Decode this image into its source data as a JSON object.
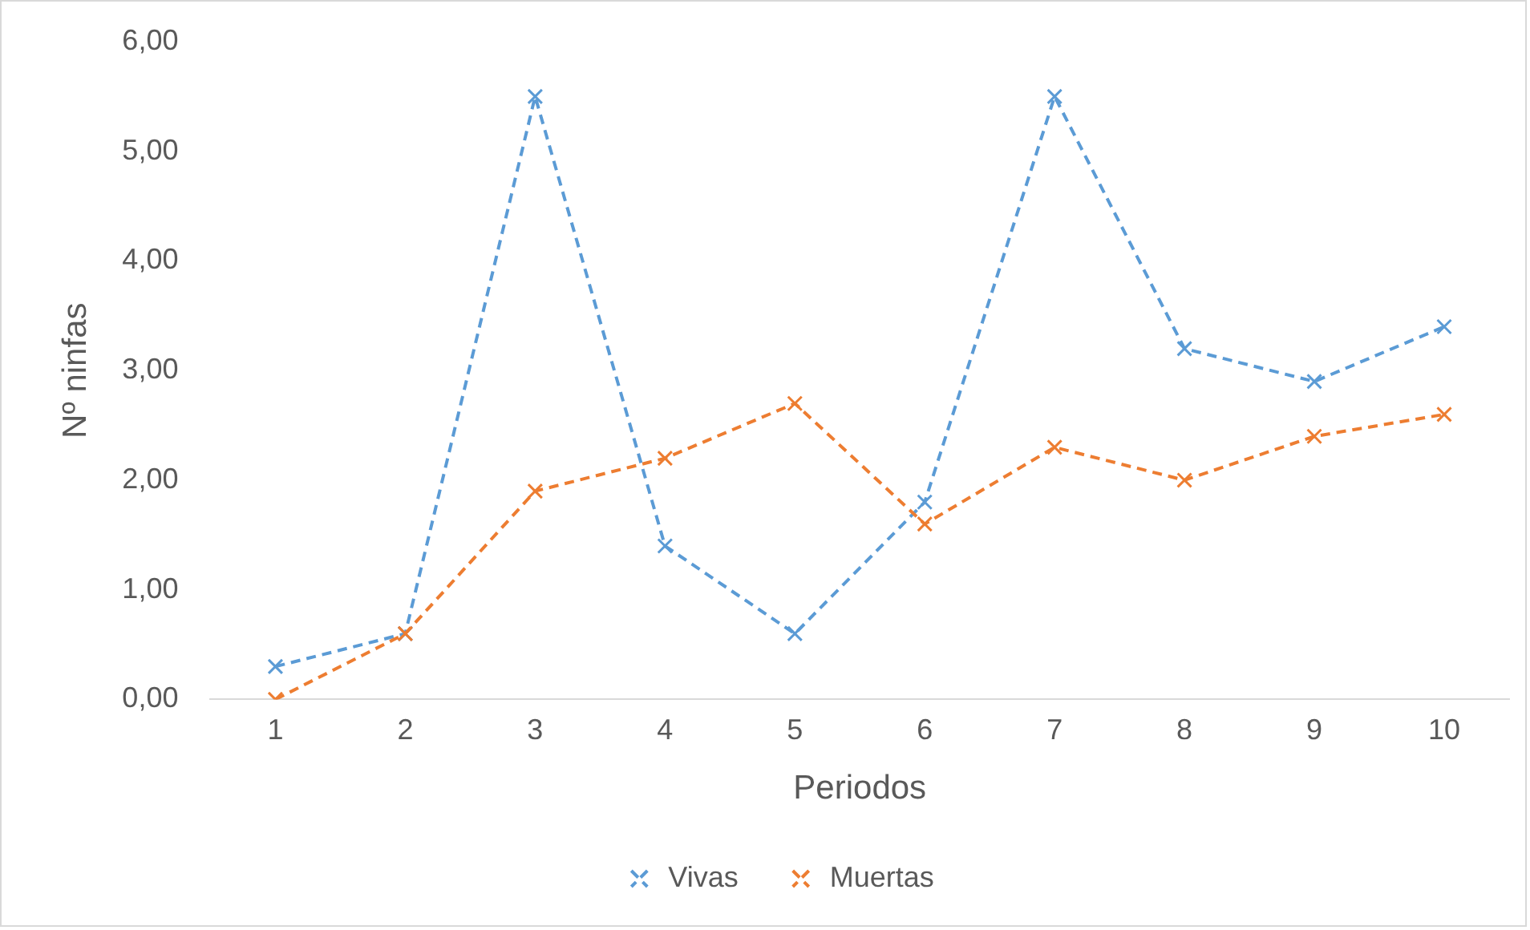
{
  "chart_data": {
    "type": "line",
    "xlabel": "Periodos",
    "ylabel": "Nº ninfas",
    "categories": [
      "1",
      "2",
      "3",
      "4",
      "5",
      "6",
      "7",
      "8",
      "9",
      "10"
    ],
    "series": [
      {
        "name": "Vivas",
        "color": "#5b9bd5",
        "values": [
          0.3,
          0.6,
          5.5,
          1.4,
          0.6,
          1.8,
          5.5,
          3.2,
          2.9,
          3.4
        ]
      },
      {
        "name": "Muertas",
        "color": "#ed7d31",
        "values": [
          0,
          0.6,
          1.9,
          2.2,
          2.7,
          1.6,
          2.3,
          2.0,
          2.4,
          2.6
        ]
      }
    ],
    "ylim": [
      0,
      6
    ],
    "yticks": [
      {
        "value": 0,
        "label": "0,00"
      },
      {
        "value": 1,
        "label": "1,00"
      },
      {
        "value": 2,
        "label": "2,00"
      },
      {
        "value": 3,
        "label": "3,00"
      },
      {
        "value": 4,
        "label": "4,00"
      },
      {
        "value": 5,
        "label": "5,00"
      },
      {
        "value": 6,
        "label": "6,00"
      }
    ],
    "grid": false,
    "legend": "bottom",
    "marker": "cross",
    "line_style": "dashed"
  }
}
